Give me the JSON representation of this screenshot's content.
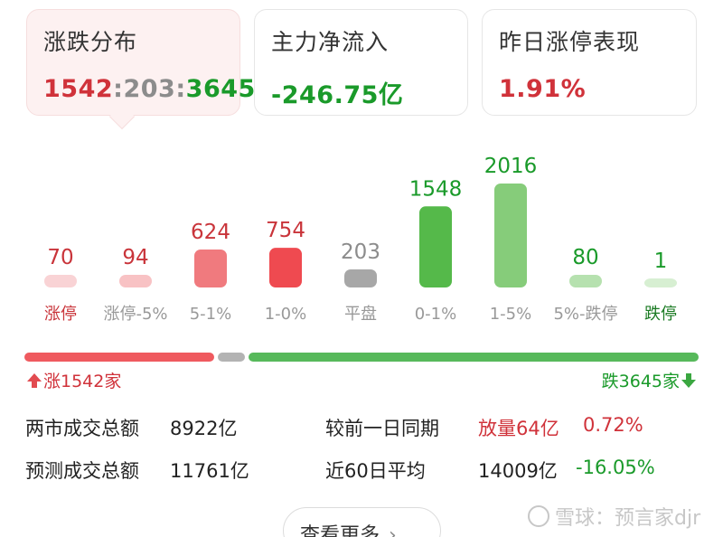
{
  "cards": [
    {
      "title": "涨跌分布",
      "up": "1542",
      "sep1": ":",
      "flat": "203",
      "sep2": ":",
      "down": "3645"
    },
    {
      "title": "主力净流入",
      "value": "-246.75亿"
    },
    {
      "title": "昨日涨停表现",
      "value": "1.91%"
    }
  ],
  "chart_data": {
    "type": "bar",
    "categories": [
      "涨停",
      "涨停-5%",
      "5-1%",
      "1-0%",
      "平盘",
      "0-1%",
      "1-5%",
      "5%-跌停",
      "跌停"
    ],
    "values": [
      70,
      94,
      624,
      754,
      203,
      1548,
      2016,
      80,
      1
    ],
    "bar_colors": [
      "#f9d3d5",
      "#f8c2c4",
      "#f07a7e",
      "#ef4a50",
      "#a7a7a7",
      "#55b94a",
      "#86cc7a",
      "#b6e1af",
      "#d7efd2"
    ],
    "value_colors": [
      "#c9343a",
      "#c9343a",
      "#c9343a",
      "#c9343a",
      "#8c8c8c",
      "#1a9a2a",
      "#1a9a2a",
      "#1a9a2a",
      "#1a9a2a"
    ],
    "label_colors": [
      "#c9343a",
      "#999999",
      "#999999",
      "#999999",
      "#999999",
      "#999999",
      "#999999",
      "#999999",
      "#1a7a22"
    ]
  },
  "updown": {
    "up_label": "涨1542家",
    "down_label": "跌3645家",
    "up_color": "#ef5a5f",
    "flat_color": "#b3b3b3",
    "down_color": "#57b95b"
  },
  "stats": {
    "row1_label": "两市成交总额",
    "row1_value": "8922亿",
    "row1_cmp_label": "较前一日同期",
    "row1_cmp_value": "放量64亿",
    "row1_cmp_pct": "0.72%",
    "row2_label": "预测成交总额",
    "row2_value": "11761亿",
    "row2_cmp_label": "近60日平均",
    "row2_cmp_value": "14009亿",
    "row2_cmp_pct": "-16.05%"
  },
  "more": {
    "label": "查看更多",
    "icon": "chevron-right-icon"
  },
  "watermark": {
    "text": "雪球：预言家djr"
  }
}
